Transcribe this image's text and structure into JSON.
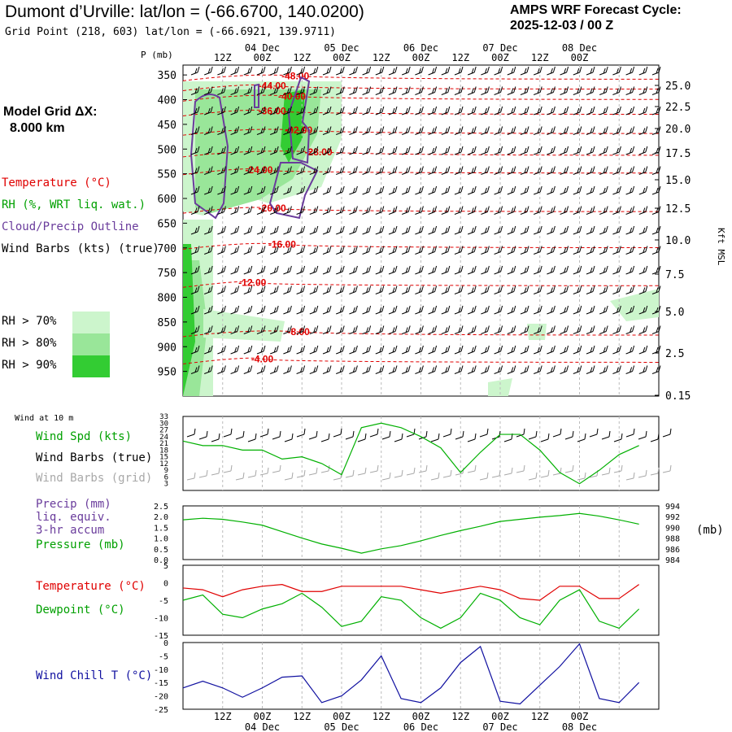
{
  "header": {
    "title": "Dumont d’Urville:  lat/lon = (-66.6700, 140.0200)",
    "subtitle": "Grid Point (218, 603) lat/lon = (-66.6921, 139.9711)",
    "cycle_line1": "AMPS WRF Forecast Cycle:",
    "cycle_line2": "2025-12-03 / 00  Z",
    "grid_line1": "Model Grid ΔX:",
    "grid_line2": "8.000 km"
  },
  "colors": {
    "temperature": "#e00000",
    "rh": "#00b000",
    "cloud": "#6a3c9c",
    "wind": "#000000",
    "grid_wind": "#a8a8a8",
    "precip": "#6a3c9c",
    "wind_chill": "#1010a0",
    "rh70": "#ccf5cc",
    "rh80": "#99e699",
    "rh90": "#33cc33"
  },
  "legend_top": {
    "temperature": "Temperature (°C)",
    "rh": "RH (%, WRT liq. wat.)",
    "cloud": "Cloud/Precip Outline",
    "wind": "Wind Barbs (kts) (true)",
    "rh70": "RH > 70%",
    "rh80": "RH > 80%",
    "rh90": "RH > 90%"
  },
  "time_axis": {
    "top_hours": [
      "12Z",
      "00Z",
      "12Z",
      "00Z",
      "12Z",
      "00Z",
      "12Z",
      "00Z",
      "12Z",
      "00Z"
    ],
    "dates": [
      {
        "label": "04 Dec",
        "index": 1
      },
      {
        "label": "05 Dec",
        "index": 3
      },
      {
        "label": "06 Dec",
        "index": 5
      },
      {
        "label": "07 Dec",
        "index": 7
      },
      {
        "label": "08 Dec",
        "index": 9
      }
    ]
  },
  "wind10_label": "Wind at 10 m",
  "wind_panel": {
    "labels": [
      "Wind Spd (kts)",
      "Wind Barbs (true)",
      "Wind Barbs (grid)"
    ],
    "yticks": [
      3,
      6,
      9,
      12,
      15,
      18,
      21,
      24,
      27,
      30,
      33
    ]
  },
  "precip_panel": {
    "labels": [
      "Precip (mm)",
      "liq. equiv.",
      "3-hr accum",
      "Pressure (mb)"
    ],
    "left_ticks": [
      "0.0",
      "0.5",
      "1.0",
      "1.5",
      "2.0",
      "2.5"
    ],
    "right_ticks": [
      "984",
      "986",
      "988",
      "990",
      "992",
      "994"
    ],
    "unit": "(mb)"
  },
  "temp_panel": {
    "labels": [
      "Temperature (°C)",
      "Dewpoint (°C)"
    ],
    "yticks": [
      "5",
      "0",
      "-5",
      "-10",
      "-15"
    ]
  },
  "chill_panel": {
    "labels": [
      "Wind Chill T (°C)"
    ],
    "yticks": [
      "0",
      "-5",
      "-10",
      "-15",
      "-20",
      "-25"
    ]
  },
  "chart_data": [
    {
      "type": "contour",
      "title": "",
      "xlabel": "",
      "ylabel": "P (mb)",
      "y2label": "Kft MSL",
      "pressure_levels": [
        350,
        400,
        450,
        500,
        550,
        600,
        650,
        700,
        750,
        800,
        850,
        900,
        950
      ],
      "height_kft": [
        25.0,
        22.5,
        20.0,
        17.5,
        15.0,
        12.5,
        10.0,
        7.5,
        5.0,
        2.5,
        0.15
      ],
      "height_labels": [
        "25.0",
        "22.5",
        "20.0",
        "17.5",
        "15.0",
        "12.5",
        "10.0",
        "7.5",
        "5.0",
        "2.5",
        "0.15"
      ],
      "temperature_contours_C": [
        {
          "label": "-48.00",
          "t_hours": 34,
          "p": 352
        },
        {
          "label": "-44.00",
          "t_hours": 27,
          "p": 372
        },
        {
          "label": "-40.00",
          "t_hours": 33,
          "p": 393
        },
        {
          "label": "-36.00",
          "t_hours": 27,
          "p": 423
        },
        {
          "label": "-32.00",
          "t_hours": 35,
          "p": 462
        },
        {
          "label": "-28.00",
          "t_hours": 41,
          "p": 506
        },
        {
          "label": "-24.00",
          "t_hours": 23,
          "p": 542
        },
        {
          "label": "-20.00",
          "t_hours": 27,
          "p": 620
        },
        {
          "label": "-16.00",
          "t_hours": 30,
          "p": 693
        },
        {
          "label": "-12.00",
          "t_hours": 21,
          "p": 770
        },
        {
          "label": "-8.00",
          "t_hours": 35,
          "p": 870
        },
        {
          "label": "-4.00",
          "t_hours": 24,
          "p": 925
        }
      ]
    },
    {
      "type": "line",
      "title": "",
      "xlabel": "",
      "ylabel": "Wind Spd (kts)",
      "x_hours": [
        0,
        6,
        12,
        18,
        24,
        30,
        36,
        42,
        48,
        54,
        60,
        66,
        72,
        78,
        84,
        90,
        96,
        102,
        108,
        114,
        120,
        126,
        132,
        138
      ],
      "series": [
        {
          "name": "Wind Spd (kts)",
          "values": [
            22,
            20,
            20,
            18,
            18,
            14,
            15,
            12,
            7,
            28,
            30,
            28,
            24,
            19,
            8,
            17,
            25,
            25,
            18,
            8,
            3,
            9,
            16,
            20
          ]
        }
      ],
      "ylim": [
        0,
        33
      ]
    },
    {
      "type": "line",
      "title": "",
      "xlabel": "",
      "ylabel": "Pressure (mb)",
      "x_hours": [
        0,
        6,
        12,
        18,
        24,
        30,
        36,
        42,
        48,
        54,
        60,
        66,
        72,
        78,
        84,
        90,
        96,
        102,
        108,
        114,
        120,
        126,
        132,
        138
      ],
      "series": [
        {
          "name": "Pressure (mb)",
          "values": [
            991.4,
            991.7,
            991.5,
            991.0,
            990.4,
            989.2,
            988.0,
            986.9,
            986.1,
            985.2,
            986.0,
            986.6,
            987.5,
            988.5,
            989.4,
            990.2,
            991.1,
            991.5,
            991.9,
            992.2,
            992.6,
            992.1,
            991.4,
            990.6
          ]
        }
      ],
      "ylim": [
        984,
        994
      ]
    },
    {
      "type": "line",
      "title": "",
      "xlabel": "",
      "ylabel": "",
      "x_hours": [
        0,
        6,
        12,
        18,
        24,
        30,
        36,
        42,
        48,
        54,
        60,
        66,
        72,
        78,
        84,
        90,
        96,
        102,
        108,
        114,
        120,
        126,
        132,
        138
      ],
      "series": [
        {
          "name": "Temperature (°C)",
          "values": [
            -1.5,
            -2,
            -4,
            -2,
            -1,
            -0.5,
            -2.5,
            -2.5,
            -1,
            -1,
            -1,
            -1,
            -2,
            -3,
            -2,
            -1,
            -2,
            -4.5,
            -5,
            -1,
            -1,
            -4.5,
            -4.5,
            -0.5
          ]
        },
        {
          "name": "Dewpoint (°C)",
          "values": [
            -5,
            -3.5,
            -9,
            -10,
            -7.5,
            -6,
            -3,
            -7,
            -12.5,
            -11,
            -4,
            -5,
            -10,
            -13,
            -10,
            -3,
            -5,
            -10,
            -12,
            -5,
            -2,
            -11,
            -13,
            -7.5
          ]
        }
      ],
      "ylim": [
        -15,
        5
      ]
    },
    {
      "type": "line",
      "title": "",
      "xlabel": "",
      "ylabel": "",
      "x_hours": [
        0,
        6,
        12,
        18,
        24,
        30,
        36,
        42,
        48,
        54,
        60,
        66,
        72,
        78,
        84,
        90,
        96,
        102,
        108,
        114,
        120,
        126,
        132,
        138
      ],
      "series": [
        {
          "name": "Wind Chill T (°C)",
          "values": [
            -17,
            -14.5,
            -17,
            -20.5,
            -17,
            -13,
            -12.5,
            -22.5,
            -20,
            -14,
            -5,
            -21,
            -22.5,
            -17,
            -7.5,
            -1.5,
            -22,
            -23,
            -16,
            -9,
            -0.5,
            -21,
            -22.5,
            -15
          ]
        }
      ],
      "ylim": [
        -25,
        0
      ]
    }
  ]
}
